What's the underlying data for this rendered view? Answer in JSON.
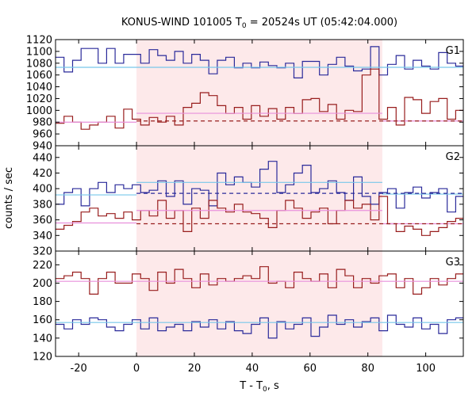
{
  "title": "KONUS-WIND 101005 T0 = 20524s UT (05:42:04.000)",
  "title_parts": {
    "prefix": "KONUS-WIND 101005 T",
    "subscript": "0",
    "suffix": " = 20524s UT (05:42:04.000)"
  },
  "xlabel_parts": {
    "prefix": "T - T",
    "subscript": "0",
    "suffix": ", s"
  },
  "ylabel": "counts / sec",
  "chart_data": {
    "type": "line",
    "x_range": [
      -28,
      113
    ],
    "x_ticks": [
      -20,
      0,
      20,
      40,
      60,
      80,
      100
    ],
    "x_tick_labels": [
      "-20",
      "0",
      "20",
      "40",
      "60",
      "80",
      "100"
    ],
    "shaded_interval": {
      "x": [
        0,
        85
      ],
      "color": "#fde9ea"
    },
    "bin_width": 2.944,
    "bin_start": -28,
    "colors": {
      "blue": "#2a2a9a",
      "red": "#981d1d",
      "cyan": "#77c8ea",
      "pink": "#e890dc"
    },
    "panels": [
      {
        "label": "G1",
        "ylim": [
          940,
          1120
        ],
        "yticks": [
          940,
          960,
          980,
          1000,
          1020,
          1040,
          1060,
          1080,
          1100,
          1120
        ],
        "ytick_labels": [
          "940",
          "960",
          "980",
          "1000",
          "1020",
          "1040",
          "1060",
          "1080",
          "1100",
          "1120"
        ],
        "series": [
          {
            "color": "blue",
            "style": "step",
            "values": [
              1090,
              1065,
              1085,
              1105,
              1105,
              1080,
              1105,
              1080,
              1095,
              1095,
              1080,
              1103,
              1093,
              1085,
              1100,
              1080,
              1095,
              1085,
              1062,
              1085,
              1090,
              1072,
              1080,
              1072,
              1082,
              1076,
              1072,
              1080,
              1055,
              1083,
              1083,
              1060,
              1078,
              1090,
              1075,
              1067,
              1070,
              1108,
              1060,
              1078,
              1093,
              1070,
              1085,
              1075,
              1070,
              1098,
              1080,
              1075,
              1055,
              1085,
              1065,
              1095,
              1052,
              1080,
              1093,
              1070,
              1065,
              1060
            ]
          },
          {
            "color": "red",
            "style": "step",
            "values": [
              978,
              990,
              980,
              968,
              975,
              980,
              990,
              970,
              1002,
              985,
              975,
              988,
              980,
              990,
              975,
              1005,
              1012,
              1030,
              1025,
              1008,
              995,
              1005,
              985,
              1008,
              990,
              1003,
              985,
              1005,
              995,
              1018,
              1020,
              998,
              1010,
              985,
              1000,
              998,
              1060,
              1070,
              985,
              1005,
              975,
              1022,
              1018,
              995,
              1015,
              1020,
              985,
              1000,
              985,
              978,
              985,
              975,
              990,
              985,
              980,
              978,
              985,
              1005
            ]
          },
          {
            "color": "cyan",
            "style": "hline",
            "y": 1073,
            "x": [
              -28,
              113
            ]
          },
          {
            "color": "pink",
            "style": "hline",
            "y": 995,
            "x": [
              0,
              85
            ]
          },
          {
            "color": "pink",
            "style": "hline",
            "y": 980,
            "x": [
              -28,
              0
            ]
          },
          {
            "color": "pink",
            "style": "hline",
            "y": 982,
            "x": [
              85,
              113
            ]
          },
          {
            "color": "red",
            "style": "dashed",
            "y": 982,
            "x": [
              0,
              113
            ]
          }
        ]
      },
      {
        "label": "G2",
        "ylim": [
          320,
          455
        ],
        "yticks": [
          320,
          340,
          360,
          380,
          400,
          420,
          440
        ],
        "ytick_labels": [
          "320",
          "340",
          "360",
          "380",
          "400",
          "420",
          "440"
        ],
        "series": [
          {
            "color": "blue",
            "style": "step",
            "values": [
              380,
              395,
              400,
              378,
              400,
              408,
              395,
              405,
              400,
              405,
              395,
              398,
              410,
              390,
              410,
              380,
              400,
              398,
              378,
              420,
              405,
              415,
              408,
              402,
              425,
              435,
              395,
              405,
              420,
              430,
              395,
              400,
              410,
              395,
              385,
              415,
              390,
              380,
              395,
              400,
              375,
              395,
              402,
              388,
              395,
              400,
              370,
              390,
              395,
              405,
              375,
              400,
              395,
              390,
              395,
              385,
              380,
              395
            ]
          },
          {
            "color": "red",
            "style": "step",
            "values": [
              348,
              353,
              358,
              370,
              375,
              365,
              368,
              362,
              370,
              360,
              372,
              365,
              385,
              362,
              372,
              345,
              375,
              362,
              385,
              375,
              370,
              380,
              370,
              368,
              362,
              350,
              372,
              385,
              375,
              362,
              370,
              375,
              355,
              372,
              385,
              375,
              380,
              360,
              390,
              355,
              345,
              352,
              348,
              340,
              345,
              350,
              358,
              362,
              352,
              365,
              360,
              355,
              345,
              348,
              345,
              352,
              365,
              385
            ]
          },
          {
            "color": "cyan",
            "style": "hline",
            "y": 408,
            "x": [
              0,
              85
            ]
          },
          {
            "color": "cyan",
            "style": "hline",
            "y": 392,
            "x": [
              -28,
              0
            ]
          },
          {
            "color": "cyan",
            "style": "hline",
            "y": 393,
            "x": [
              85,
              113
            ]
          },
          {
            "color": "blue",
            "style": "dashed",
            "y": 394,
            "x": [
              0,
              113
            ]
          },
          {
            "color": "pink",
            "style": "hline",
            "y": 372,
            "x": [
              0,
              85
            ]
          },
          {
            "color": "pink",
            "style": "hline",
            "y": 356,
            "x": [
              -28,
              0
            ]
          },
          {
            "color": "pink",
            "style": "hline",
            "y": 355,
            "x": [
              85,
              113
            ]
          },
          {
            "color": "red",
            "style": "dashed",
            "y": 355,
            "x": [
              0,
              113
            ]
          }
        ]
      },
      {
        "label": "G3",
        "ylim": [
          120,
          235
        ],
        "yticks": [
          120,
          140,
          160,
          180,
          200,
          220
        ],
        "ytick_labels": [
          "120",
          "140",
          "160",
          "180",
          "200",
          "220"
        ],
        "series": [
          {
            "color": "red",
            "style": "step",
            "values": [
              205,
              208,
              212,
              205,
              188,
              205,
              212,
              200,
              200,
              210,
              205,
              192,
              212,
              200,
              215,
              205,
              195,
              210,
              198,
              205,
              202,
              205,
              208,
              205,
              218,
              200,
              202,
              195,
              212,
              205,
              202,
              210,
              195,
              215,
              208,
              195,
              205,
              200,
              208,
              210,
              195,
              205,
              188,
              195,
              205,
              198,
              205,
              210,
              218,
              200,
              192,
              205,
              198,
              210,
              215,
              192,
              190,
              215
            ]
          },
          {
            "color": "blue",
            "style": "step",
            "values": [
              155,
              150,
              160,
              155,
              162,
              160,
              152,
              148,
              155,
              160,
              150,
              162,
              148,
              152,
              155,
              148,
              158,
              152,
              160,
              150,
              158,
              148,
              145,
              155,
              162,
              140,
              158,
              150,
              155,
              162,
              142,
              152,
              165,
              155,
              160,
              152,
              158,
              162,
              148,
              165,
              155,
              152,
              162,
              150,
              155,
              145,
              160,
              162,
              158,
              152,
              150,
              155,
              162,
              150,
              145,
              158,
              170,
              162
            ]
          },
          {
            "color": "pink",
            "style": "hline",
            "y": 202,
            "x": [
              -28,
              113
            ]
          },
          {
            "color": "cyan",
            "style": "hline",
            "y": 157,
            "x": [
              -28,
              113
            ]
          }
        ]
      }
    ]
  }
}
